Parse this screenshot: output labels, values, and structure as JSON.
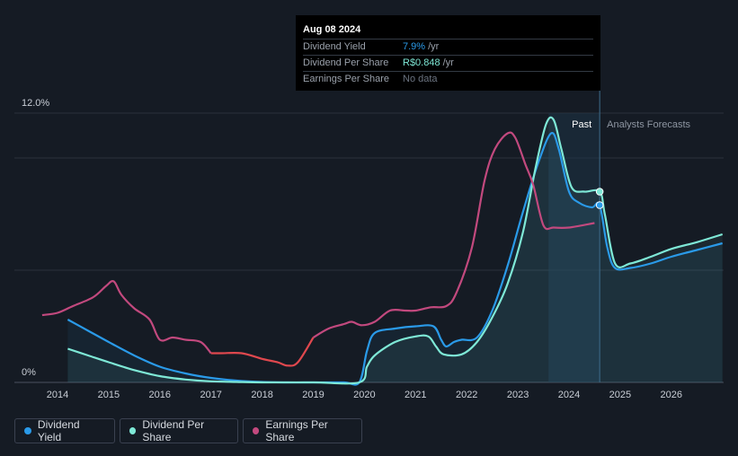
{
  "tooltip": {
    "date": "Aug 08 2024",
    "rows": [
      {
        "label": "Dividend Yield",
        "value": "7.9%",
        "unit": "/yr",
        "color": "#2a9ae8"
      },
      {
        "label": "Dividend Per Share",
        "value": "R$0.848",
        "unit": "/yr",
        "color": "#7ee8d6"
      },
      {
        "label": "Earnings Per Share",
        "value": "No data",
        "unit": "",
        "color": "#6b7380"
      }
    ]
  },
  "regions": {
    "past": "Past",
    "forecast": "Analysts Forecasts"
  },
  "legend": [
    {
      "label": "Dividend Yield",
      "color": "#2a9ae8"
    },
    {
      "label": "Dividend Per Share",
      "color": "#7ee8d6"
    },
    {
      "label": "Earnings Per Share",
      "color": "#c2497e"
    }
  ],
  "chart_data": {
    "type": "line",
    "y_tick_labels": [
      "0%",
      "12.0%"
    ],
    "ylim": [
      0,
      12
    ],
    "xlim": [
      2013.7,
      2027.0
    ],
    "x_ticks": [
      2014,
      2015,
      2016,
      2017,
      2018,
      2019,
      2020,
      2021,
      2022,
      2023,
      2024,
      2025,
      2026
    ],
    "forecast_start": 2024.6,
    "grid": true,
    "series": [
      {
        "name": "Dividend Yield",
        "color": "#2a9ae8",
        "points": [
          [
            2014.2,
            2.8
          ],
          [
            2014.6,
            2.3
          ],
          [
            2015.0,
            1.8
          ],
          [
            2015.5,
            1.2
          ],
          [
            2016.0,
            0.7
          ],
          [
            2016.5,
            0.4
          ],
          [
            2017.0,
            0.2
          ],
          [
            2017.5,
            0.08
          ],
          [
            2018.0,
            0.02
          ],
          [
            2018.5,
            0.0
          ],
          [
            2019.0,
            0.0
          ],
          [
            2019.6,
            0.0
          ],
          [
            2019.9,
            0.0
          ],
          [
            2020.05,
            1.4
          ],
          [
            2020.2,
            2.2
          ],
          [
            2020.6,
            2.4
          ],
          [
            2021.0,
            2.5
          ],
          [
            2021.35,
            2.5
          ],
          [
            2021.5,
            1.9
          ],
          [
            2021.6,
            1.6
          ],
          [
            2021.75,
            1.8
          ],
          [
            2021.9,
            1.9
          ],
          [
            2022.2,
            2.0
          ],
          [
            2022.5,
            3.2
          ],
          [
            2022.8,
            5.2
          ],
          [
            2023.1,
            7.6
          ],
          [
            2023.4,
            9.8
          ],
          [
            2023.65,
            11.1
          ],
          [
            2023.8,
            10.4
          ],
          [
            2024.0,
            8.5
          ],
          [
            2024.2,
            8.0
          ],
          [
            2024.45,
            7.8
          ],
          [
            2024.6,
            7.9
          ],
          [
            2024.75,
            6.0
          ],
          [
            2024.9,
            5.1
          ],
          [
            2025.2,
            5.1
          ],
          [
            2025.6,
            5.3
          ],
          [
            2026.0,
            5.6
          ],
          [
            2026.5,
            5.9
          ],
          [
            2027.0,
            6.2
          ]
        ]
      },
      {
        "name": "Dividend Per Share",
        "color": "#7ee8d6",
        "points": [
          [
            2014.2,
            1.5
          ],
          [
            2014.6,
            1.2
          ],
          [
            2015.0,
            0.9
          ],
          [
            2015.5,
            0.55
          ],
          [
            2016.0,
            0.28
          ],
          [
            2016.5,
            0.13
          ],
          [
            2017.0,
            0.05
          ],
          [
            2017.5,
            0.02
          ],
          [
            2018.0,
            0.0
          ],
          [
            2019.0,
            0.0
          ],
          [
            2019.9,
            0.0
          ],
          [
            2020.05,
            0.7
          ],
          [
            2020.2,
            1.2
          ],
          [
            2020.6,
            1.8
          ],
          [
            2021.0,
            2.05
          ],
          [
            2021.25,
            2.05
          ],
          [
            2021.4,
            1.6
          ],
          [
            2021.55,
            1.25
          ],
          [
            2021.9,
            1.25
          ],
          [
            2022.2,
            1.8
          ],
          [
            2022.5,
            2.9
          ],
          [
            2022.8,
            4.4
          ],
          [
            2023.1,
            6.7
          ],
          [
            2023.35,
            9.6
          ],
          [
            2023.55,
            11.5
          ],
          [
            2023.7,
            11.7
          ],
          [
            2023.85,
            10.4
          ],
          [
            2024.05,
            8.7
          ],
          [
            2024.3,
            8.5
          ],
          [
            2024.6,
            8.5
          ],
          [
            2024.7,
            7.5
          ],
          [
            2024.9,
            5.3
          ],
          [
            2025.2,
            5.3
          ],
          [
            2025.6,
            5.6
          ],
          [
            2026.0,
            5.95
          ],
          [
            2026.5,
            6.25
          ],
          [
            2027.0,
            6.6
          ]
        ]
      },
      {
        "name": "Earnings Per Share",
        "color": "#c2497e",
        "points": [
          [
            2013.7,
            3.0
          ],
          [
            2014.0,
            3.1
          ],
          [
            2014.3,
            3.4
          ],
          [
            2014.7,
            3.8
          ],
          [
            2014.95,
            4.3
          ],
          [
            2015.1,
            4.5
          ],
          [
            2015.25,
            3.9
          ],
          [
            2015.5,
            3.3
          ],
          [
            2015.8,
            2.8
          ],
          [
            2016.0,
            1.9
          ],
          [
            2016.25,
            2.0
          ],
          [
            2016.5,
            1.9
          ],
          [
            2016.8,
            1.8
          ],
          [
            2017.0,
            1.3
          ],
          [
            2017.2,
            1.3
          ],
          [
            2017.6,
            1.3
          ],
          [
            2018.0,
            1.05
          ],
          [
            2018.3,
            0.9
          ],
          [
            2018.5,
            0.75
          ],
          [
            2018.7,
            0.9
          ],
          [
            2019.0,
            2.0
          ],
          [
            2019.3,
            2.4
          ],
          [
            2019.6,
            2.6
          ],
          [
            2019.75,
            2.7
          ],
          [
            2019.95,
            2.55
          ],
          [
            2020.2,
            2.7
          ],
          [
            2020.5,
            3.2
          ],
          [
            2020.8,
            3.2
          ],
          [
            2021.0,
            3.2
          ],
          [
            2021.3,
            3.35
          ],
          [
            2021.6,
            3.4
          ],
          [
            2021.8,
            4.0
          ],
          [
            2022.1,
            6.0
          ],
          [
            2022.35,
            9.0
          ],
          [
            2022.55,
            10.4
          ],
          [
            2022.8,
            11.1
          ],
          [
            2022.95,
            10.9
          ],
          [
            2023.15,
            9.7
          ],
          [
            2023.3,
            8.8
          ],
          [
            2023.5,
            7.0
          ],
          [
            2023.7,
            6.9
          ],
          [
            2024.0,
            6.9
          ],
          [
            2024.5,
            7.1
          ]
        ]
      }
    ]
  }
}
